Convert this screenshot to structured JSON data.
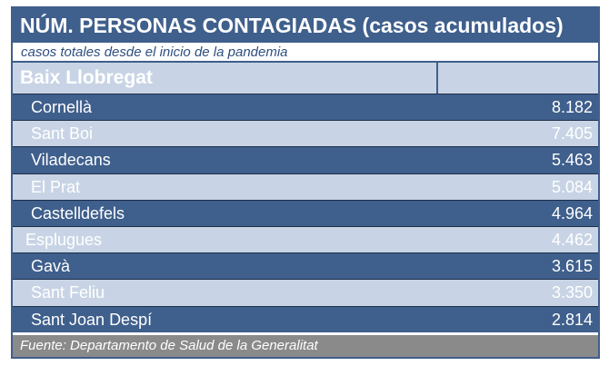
{
  "title": "NÚM. PERSONAS CONTAGIADAS (casos acumulados)",
  "subtitle": "casos totales desde el inicio de la pandemia",
  "region": "Baix Llobregat",
  "rows": [
    {
      "municipality": "Cornellà",
      "cases": "8.182"
    },
    {
      "municipality": "Sant Boi",
      "cases": "7.405"
    },
    {
      "municipality": "Viladecans",
      "cases": "5.463"
    },
    {
      "municipality": "El Prat",
      "cases": "5.084"
    },
    {
      "municipality": "Castelldefels",
      "cases": "4.964"
    },
    {
      "municipality": "Esplugues",
      "cases": "4.462"
    },
    {
      "municipality": "Gavà",
      "cases": "3.615"
    },
    {
      "municipality": "Sant Feliu",
      "cases": "3.350"
    },
    {
      "municipality": "Sant Joan Despí",
      "cases": "2.814"
    }
  ],
  "source": "Fuente: Departamento de Salud de la Generalitat",
  "colors": {
    "dark_row": "#3f5f8c",
    "light_row": "#c8d4e5",
    "footer": "#8a8a8a"
  }
}
